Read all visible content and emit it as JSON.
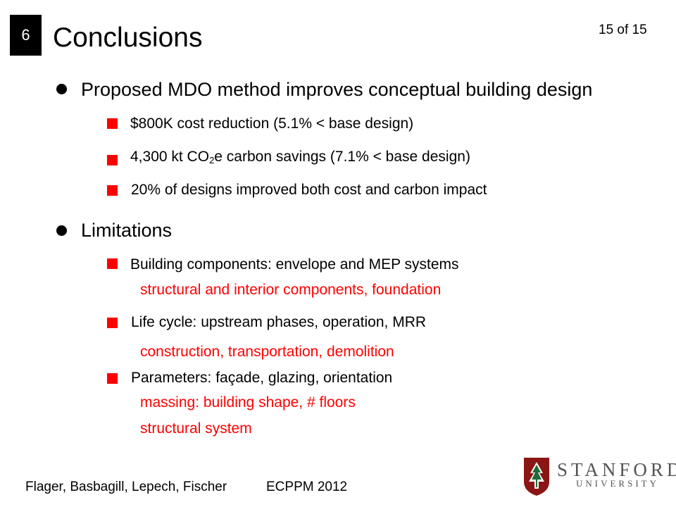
{
  "header": {
    "section_number": "6",
    "title": "Conclusions",
    "page_indicator": "15 of 15"
  },
  "main": {
    "bullets": [
      {
        "text": "Proposed MDO method improves conceptual building design",
        "items": [
          {
            "text": "$800K cost reduction (5.1% < base design)"
          },
          {
            "text_pre": "4,300 kt CO",
            "text_sub": "2",
            "text_post": "e carbon savings (7.1% < base design)"
          },
          {
            "text": "20% of designs improved both cost and carbon impact"
          }
        ]
      },
      {
        "text": "Limitations",
        "items": [
          {
            "text": "Building components: envelope and MEP systems",
            "notes": [
              "structural and interior components, foundation"
            ]
          },
          {
            "text": "Life cycle: upstream phases, operation, MRR",
            "notes": [
              "construction, transportation, demolition"
            ]
          },
          {
            "text": "Parameters: façade, glazing, orientation",
            "notes": [
              "massing: building shape, # floors",
              "structural system"
            ]
          }
        ]
      }
    ]
  },
  "footer": {
    "authors": "Flager, Basbagill, Lepech, Fischer",
    "conference": "ECPPM 2012"
  },
  "logo": {
    "name": "STANFORD",
    "sub": "UNIVERSITY"
  },
  "colors": {
    "accent": "#ff0000",
    "badge_bg": "#000000",
    "logo_red": "#8c1515"
  }
}
